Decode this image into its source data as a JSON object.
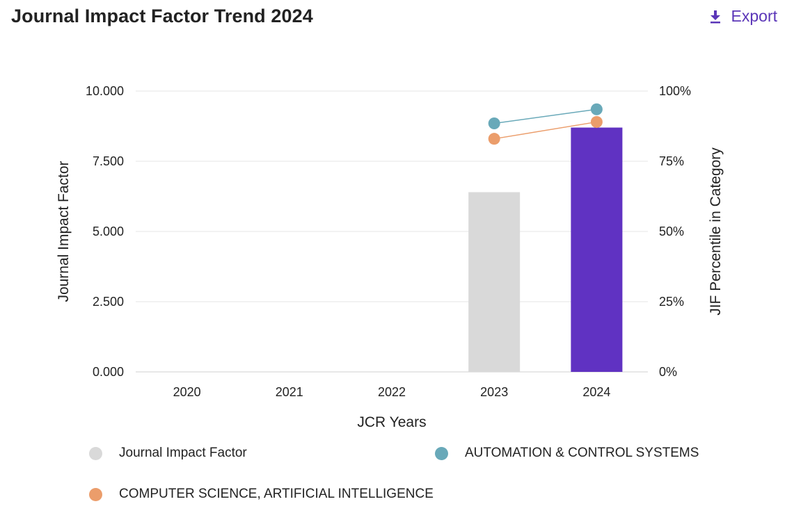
{
  "header": {
    "title": "Journal Impact Factor Trend 2024",
    "export_label": "Export"
  },
  "colors": {
    "bar_default": "#d9d9d9",
    "bar_highlight": "#6032c2",
    "series_automation": "#69a9b9",
    "series_cs_ai": "#eb9d6b",
    "accent": "#5b36b8"
  },
  "chart_data": {
    "type": "bar",
    "title": "Journal Impact Factor Trend 2024",
    "xlabel": "JCR Years",
    "ylabel": "Journal Impact Factor",
    "y2label": "JIF Percentile in Category",
    "categories": [
      "2020",
      "2021",
      "2022",
      "2023",
      "2024"
    ],
    "ylim": [
      0,
      10
    ],
    "y_ticks": [
      "0.000",
      "2.500",
      "5.000",
      "7.500",
      "10.000"
    ],
    "y_tick_values": [
      0,
      2.5,
      5,
      7.5,
      10
    ],
    "y2lim": [
      0,
      100
    ],
    "y2_ticks": [
      "0%",
      "25%",
      "50%",
      "75%",
      "100%"
    ],
    "y2_tick_values": [
      0,
      25,
      50,
      75,
      100
    ],
    "grid": true,
    "series": [
      {
        "name": "Journal Impact Factor",
        "kind": "bar",
        "axis": "left",
        "values": [
          null,
          null,
          null,
          6.4,
          8.7
        ]
      },
      {
        "name": "AUTOMATION & CONTROL SYSTEMS",
        "kind": "line",
        "axis": "right",
        "values": [
          null,
          null,
          null,
          88.5,
          93.5
        ]
      },
      {
        "name": "COMPUTER SCIENCE, ARTIFICIAL INTELLIGENCE",
        "kind": "line",
        "axis": "right",
        "values": [
          null,
          null,
          null,
          83,
          89
        ]
      }
    ]
  },
  "legend": {
    "items": [
      {
        "label": "Journal Impact Factor"
      },
      {
        "label": "AUTOMATION & CONTROL SYSTEMS"
      },
      {
        "label": "COMPUTER SCIENCE, ARTIFICIAL INTELLIGENCE"
      }
    ]
  }
}
